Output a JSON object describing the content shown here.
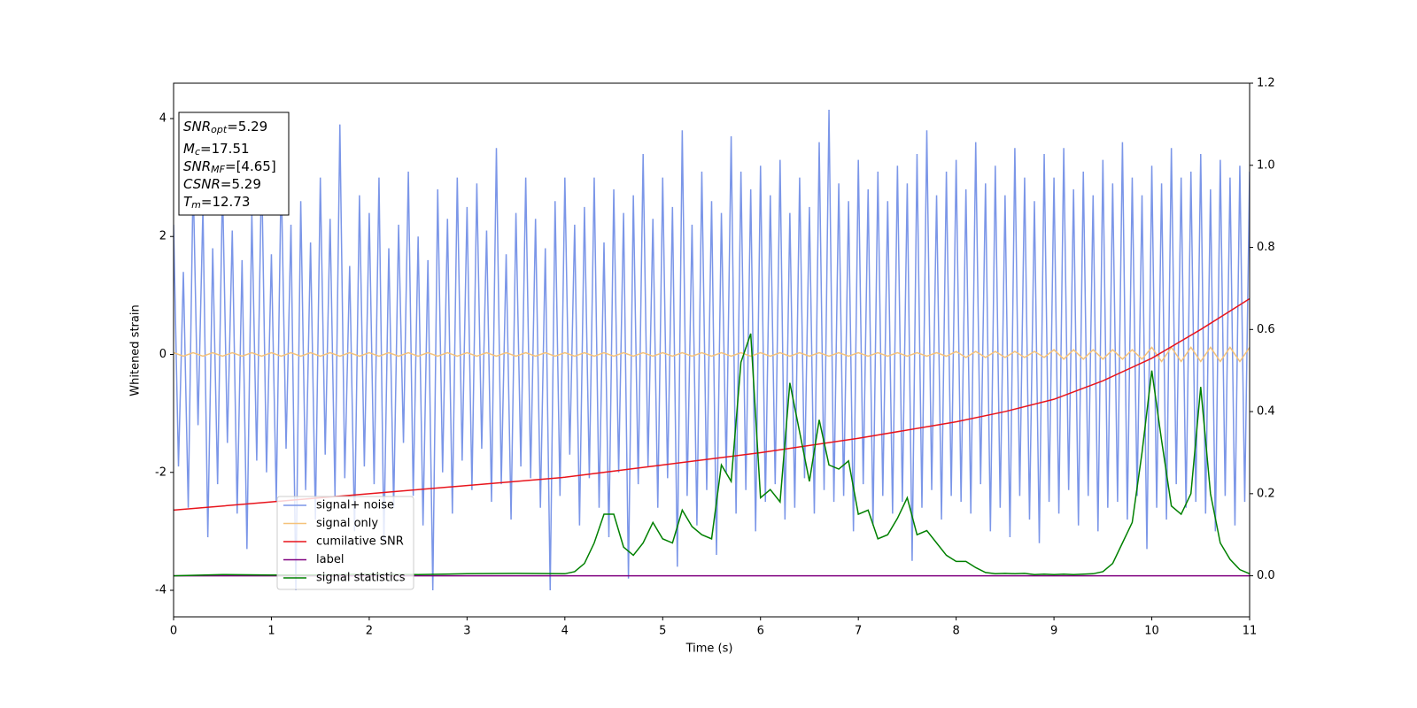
{
  "chart_data": {
    "type": "line",
    "xlabel": "Time (s)",
    "ylabel": "Whitened strain",
    "xlim": [
      0,
      11
    ],
    "xticks": [
      0,
      1,
      2,
      3,
      4,
      5,
      6,
      7,
      8,
      9,
      10,
      11
    ],
    "ylim": [
      -4.45,
      4.6
    ],
    "yticks": [
      -4,
      -2,
      0,
      2,
      4
    ],
    "y2lim": [
      -0.1,
      1.2
    ],
    "y2ticks": [
      {
        "value": 0,
        "label": "0.0"
      },
      {
        "value": 0.2,
        "label": "0.2"
      },
      {
        "value": 0.4,
        "label": "0.4"
      },
      {
        "value": 0.6,
        "label": "0.6"
      },
      {
        "value": 0.8,
        "label": "0.8"
      },
      {
        "value": 1.0,
        "label": "1.0"
      },
      {
        "value": 1.2,
        "label": "1.2"
      }
    ],
    "annotations": [
      {
        "text": "SNR",
        "sub": "opt",
        "label": "=5.29"
      },
      {
        "text": "M",
        "sub": "c",
        "label": "=17.51"
      },
      {
        "text": "SNR",
        "sub": "MF",
        "label": "=[4.65]"
      },
      {
        "text": "CSNR",
        "label": "=5.29"
      },
      {
        "text": "T",
        "sub": "m",
        "label": "=12.73"
      }
    ],
    "series": [
      {
        "name": "signal+ noise",
        "color": "#7b96e8",
        "x": [
          0,
          0.05,
          0.1,
          0.15,
          0.2,
          0.25,
          0.3,
          0.35,
          0.4,
          0.45,
          0.5,
          0.55,
          0.6,
          0.65,
          0.7,
          0.75,
          0.8,
          0.85,
          0.9,
          0.95,
          1,
          1.05,
          1.1,
          1.15,
          1.2,
          1.25,
          1.3,
          1.35,
          1.4,
          1.45,
          1.5,
          1.55,
          1.6,
          1.65,
          1.7,
          1.75,
          1.8,
          1.85,
          1.9,
          1.95,
          2,
          2.05,
          2.1,
          2.15,
          2.2,
          2.25,
          2.3,
          2.35,
          2.4,
          2.45,
          2.5,
          2.55,
          2.6,
          2.65,
          2.7,
          2.75,
          2.8,
          2.85,
          2.9,
          2.95,
          3,
          3.05,
          3.1,
          3.15,
          3.2,
          3.25,
          3.3,
          3.35,
          3.4,
          3.45,
          3.5,
          3.55,
          3.6,
          3.65,
          3.7,
          3.75,
          3.8,
          3.85,
          3.9,
          3.95,
          4,
          4.05,
          4.1,
          4.15,
          4.2,
          4.25,
          4.3,
          4.35,
          4.4,
          4.45,
          4.5,
          4.55,
          4.6,
          4.65,
          4.7,
          4.75,
          4.8,
          4.85,
          4.9,
          4.95,
          5,
          5.05,
          5.1,
          5.15,
          5.2,
          5.25,
          5.3,
          5.35,
          5.4,
          5.45,
          5.5,
          5.55,
          5.6,
          5.65,
          5.7,
          5.75,
          5.8,
          5.85,
          5.9,
          5.95,
          6,
          6.05,
          6.1,
          6.15,
          6.2,
          6.25,
          6.3,
          6.35,
          6.4,
          6.45,
          6.5,
          6.55,
          6.6,
          6.65,
          6.7,
          6.75,
          6.8,
          6.85,
          6.9,
          6.95,
          7,
          7.05,
          7.1,
          7.15,
          7.2,
          7.25,
          7.3,
          7.35,
          7.4,
          7.45,
          7.5,
          7.55,
          7.6,
          7.65,
          7.7,
          7.75,
          7.8,
          7.85,
          7.9,
          7.95,
          8,
          8.05,
          8.1,
          8.15,
          8.2,
          8.25,
          8.3,
          8.35,
          8.4,
          8.45,
          8.5,
          8.55,
          8.6,
          8.65,
          8.7,
          8.75,
          8.8,
          8.85,
          8.9,
          8.95,
          9,
          9.05,
          9.1,
          9.15,
          9.2,
          9.25,
          9.3,
          9.35,
          9.4,
          9.45,
          9.5,
          9.55,
          9.6,
          9.65,
          9.7,
          9.75,
          9.8,
          9.85,
          9.9,
          9.95,
          10,
          10.05,
          10.1,
          10.15,
          10.2,
          10.25,
          10.3,
          10.35,
          10.4,
          10.45,
          10.5,
          10.55,
          10.6,
          10.65,
          10.7,
          10.75,
          10.8,
          10.85,
          10.9,
          10.95,
          11
        ],
        "values": [
          2.2,
          -1.9,
          1.4,
          -2.6,
          3.0,
          -1.2,
          2.5,
          -3.1,
          1.8,
          -2.2,
          2.9,
          -1.5,
          2.1,
          -2.7,
          1.6,
          -3.3,
          2.4,
          -1.8,
          3.2,
          -2.0,
          1.7,
          -2.5,
          3.1,
          -1.6,
          2.2,
          -4.0,
          2.6,
          -2.3,
          1.9,
          -2.8,
          3.0,
          -1.7,
          2.3,
          -2.4,
          3.9,
          -2.1,
          1.5,
          -3.0,
          2.7,
          -1.9,
          2.4,
          -2.2,
          3.0,
          -3.2,
          1.8,
          -2.6,
          2.2,
          -1.5,
          3.1,
          -2.4,
          2.0,
          -2.9,
          1.6,
          -4.0,
          2.8,
          -2.0,
          2.3,
          -2.7,
          3.0,
          -1.8,
          2.5,
          -2.3,
          2.9,
          -1.6,
          2.1,
          -2.5,
          3.5,
          -2.2,
          1.7,
          -2.8,
          2.4,
          -1.9,
          3.0,
          -2.1,
          2.3,
          -2.6,
          1.8,
          -4.0,
          2.6,
          -2.4,
          3.0,
          -1.7,
          2.2,
          -2.9,
          2.5,
          -2.1,
          3.0,
          -2.6,
          1.9,
          -3.1,
          2.8,
          -2.0,
          2.4,
          -3.8,
          2.7,
          -2.2,
          3.4,
          -1.9,
          2.3,
          -2.6,
          3.0,
          -2.1,
          2.5,
          -3.6,
          3.8,
          -2.4,
          2.2,
          -2.9,
          3.1,
          -2.3,
          2.6,
          -3.4,
          2.4,
          -2.0,
          3.7,
          -2.7,
          3.1,
          -2.3,
          2.8,
          -3.0,
          3.2,
          -2.5,
          2.7,
          -2.2,
          3.3,
          -2.8,
          2.4,
          -2.6,
          3.0,
          -2.1,
          2.5,
          -2.7,
          3.6,
          -2.3,
          4.15,
          -2.5,
          2.9,
          -2.4,
          2.6,
          -3.0,
          3.3,
          -2.2,
          2.8,
          -2.9,
          3.1,
          -2.4,
          2.6,
          -2.7,
          3.2,
          -2.5,
          2.9,
          -3.5,
          3.4,
          -2.6,
          3.8,
          -2.3,
          2.7,
          -2.8,
          3.1,
          -2.4,
          3.3,
          -2.5,
          2.8,
          -2.7,
          3.6,
          -2.2,
          2.9,
          -3.0,
          3.2,
          -2.6,
          2.7,
          -3.1,
          3.5,
          -2.4,
          3.0,
          -2.8,
          2.6,
          -3.2,
          3.4,
          -2.5,
          3.0,
          -2.7,
          3.5,
          -2.3,
          2.8,
          -2.9,
          3.1,
          -2.4,
          2.7,
          -3.0,
          3.3,
          -2.6,
          2.9,
          -2.5,
          3.6,
          -2.8,
          3.0,
          -2.4,
          2.7,
          -3.3,
          3.2,
          -2.6,
          2.9,
          -2.8,
          3.5,
          -2.2,
          3.0,
          -2.6,
          3.1,
          -2.5,
          3.4,
          -2.7,
          2.8,
          -3.0,
          3.3,
          -2.4,
          3.0,
          -2.9,
          3.2,
          -2.5,
          3.1
        ]
      },
      {
        "name": "signal only",
        "color": "#f5c27a",
        "x": [
          0,
          0.1,
          0.2,
          0.3,
          0.4,
          0.5,
          0.6,
          0.7,
          0.8,
          0.9,
          1,
          1.1,
          1.2,
          1.3,
          1.4,
          1.5,
          1.6,
          1.7,
          1.8,
          1.9,
          2,
          2.1,
          2.2,
          2.3,
          2.4,
          2.5,
          2.6,
          2.7,
          2.8,
          2.9,
          3,
          3.1,
          3.2,
          3.3,
          3.4,
          3.5,
          3.6,
          3.7,
          3.8,
          3.9,
          4,
          4.1,
          4.2,
          4.3,
          4.4,
          4.5,
          4.6,
          4.7,
          4.8,
          4.9,
          5,
          5.1,
          5.2,
          5.3,
          5.4,
          5.5,
          5.6,
          5.7,
          5.8,
          5.9,
          6,
          6.1,
          6.2,
          6.3,
          6.4,
          6.5,
          6.6,
          6.7,
          6.8,
          6.9,
          7,
          7.1,
          7.2,
          7.3,
          7.4,
          7.5,
          7.6,
          7.7,
          7.8,
          7.9,
          8,
          8.1,
          8.2,
          8.3,
          8.4,
          8.5,
          8.6,
          8.7,
          8.8,
          8.9,
          9,
          9.1,
          9.2,
          9.3,
          9.4,
          9.5,
          9.6,
          9.7,
          9.8,
          9.9,
          10,
          10.1,
          10.2,
          10.3,
          10.4,
          10.5,
          10.6,
          10.7,
          10.8,
          10.9,
          11
        ],
        "values": [
          0.03,
          -0.03,
          0.03,
          -0.03,
          0.03,
          -0.03,
          0.03,
          -0.03,
          0.03,
          -0.03,
          0.03,
          -0.03,
          0.03,
          -0.03,
          0.03,
          -0.03,
          0.03,
          -0.03,
          0.03,
          -0.03,
          0.03,
          -0.03,
          0.03,
          -0.03,
          0.03,
          -0.03,
          0.03,
          -0.03,
          0.03,
          -0.03,
          0.03,
          -0.03,
          0.03,
          -0.03,
          0.03,
          -0.03,
          0.03,
          -0.03,
          0.03,
          -0.03,
          0.03,
          -0.03,
          0.03,
          -0.03,
          0.03,
          -0.03,
          0.03,
          -0.03,
          0.03,
          -0.03,
          0.03,
          -0.03,
          0.03,
          -0.03,
          0.03,
          -0.03,
          0.03,
          -0.03,
          0.03,
          -0.03,
          0.03,
          -0.03,
          0.03,
          -0.03,
          0.03,
          -0.03,
          0.03,
          -0.03,
          0.03,
          -0.03,
          0.03,
          -0.03,
          0.03,
          -0.03,
          0.03,
          -0.03,
          0.03,
          -0.03,
          0.03,
          -0.03,
          0.05,
          -0.05,
          0.05,
          -0.05,
          0.05,
          -0.05,
          0.05,
          -0.05,
          0.05,
          -0.05,
          0.08,
          -0.08,
          0.08,
          -0.08,
          0.08,
          -0.08,
          0.08,
          -0.08,
          0.08,
          -0.08,
          0.12,
          -0.12,
          0.12,
          -0.12,
          0.12,
          -0.12,
          0.12,
          -0.12,
          0.12,
          -0.12,
          0.12
        ]
      },
      {
        "name": "cumilative SNR",
        "color": "#e8141c",
        "axis": "y2",
        "x": [
          0,
          1,
          2,
          3,
          4,
          5,
          6,
          7,
          8,
          8.5,
          9,
          9.5,
          10,
          10.5,
          11
        ],
        "values": [
          0.16,
          0.18,
          0.2,
          0.22,
          0.24,
          0.27,
          0.3,
          0.335,
          0.375,
          0.4,
          0.43,
          0.475,
          0.53,
          0.6,
          0.675
        ]
      },
      {
        "name": "label",
        "color": "#800080",
        "axis": "y2",
        "x": [
          0,
          11
        ],
        "values": [
          0,
          0
        ]
      },
      {
        "name": "signal statistics",
        "color": "#008000",
        "axis": "y2",
        "x": [
          0,
          0.5,
          1,
          1.5,
          2,
          2.5,
          3,
          3.5,
          4,
          4.1,
          4.2,
          4.3,
          4.4,
          4.5,
          4.6,
          4.7,
          4.8,
          4.9,
          5,
          5.1,
          5.2,
          5.3,
          5.4,
          5.5,
          5.6,
          5.7,
          5.8,
          5.9,
          6,
          6.1,
          6.2,
          6.3,
          6.4,
          6.5,
          6.6,
          6.7,
          6.8,
          6.9,
          7,
          7.1,
          7.2,
          7.3,
          7.4,
          7.5,
          7.6,
          7.7,
          7.8,
          7.9,
          8,
          8.1,
          8.2,
          8.3,
          8.4,
          8.5,
          8.6,
          8.7,
          8.8,
          8.9,
          9,
          9.1,
          9.2,
          9.3,
          9.4,
          9.5,
          9.6,
          9.7,
          9.8,
          9.9,
          10,
          10.1,
          10.2,
          10.3,
          10.4,
          10.5,
          10.6,
          10.7,
          10.8,
          10.9,
          11
        ],
        "values": [
          0.0,
          0.003,
          0.002,
          0.002,
          0.004,
          0.003,
          0.005,
          0.006,
          0.005,
          0.01,
          0.03,
          0.08,
          0.15,
          0.15,
          0.07,
          0.05,
          0.08,
          0.13,
          0.09,
          0.08,
          0.16,
          0.12,
          0.1,
          0.09,
          0.27,
          0.23,
          0.52,
          0.59,
          0.19,
          0.21,
          0.18,
          0.47,
          0.35,
          0.23,
          0.38,
          0.27,
          0.26,
          0.28,
          0.15,
          0.16,
          0.09,
          0.1,
          0.14,
          0.19,
          0.1,
          0.11,
          0.08,
          0.05,
          0.035,
          0.035,
          0.02,
          0.008,
          0.005,
          0.006,
          0.005,
          0.006,
          0.003,
          0.004,
          0.003,
          0.004,
          0.003,
          0.004,
          0.005,
          0.01,
          0.03,
          0.08,
          0.13,
          0.3,
          0.5,
          0.33,
          0.17,
          0.15,
          0.2,
          0.46,
          0.2,
          0.08,
          0.04,
          0.015,
          0.005
        ]
      }
    ]
  }
}
